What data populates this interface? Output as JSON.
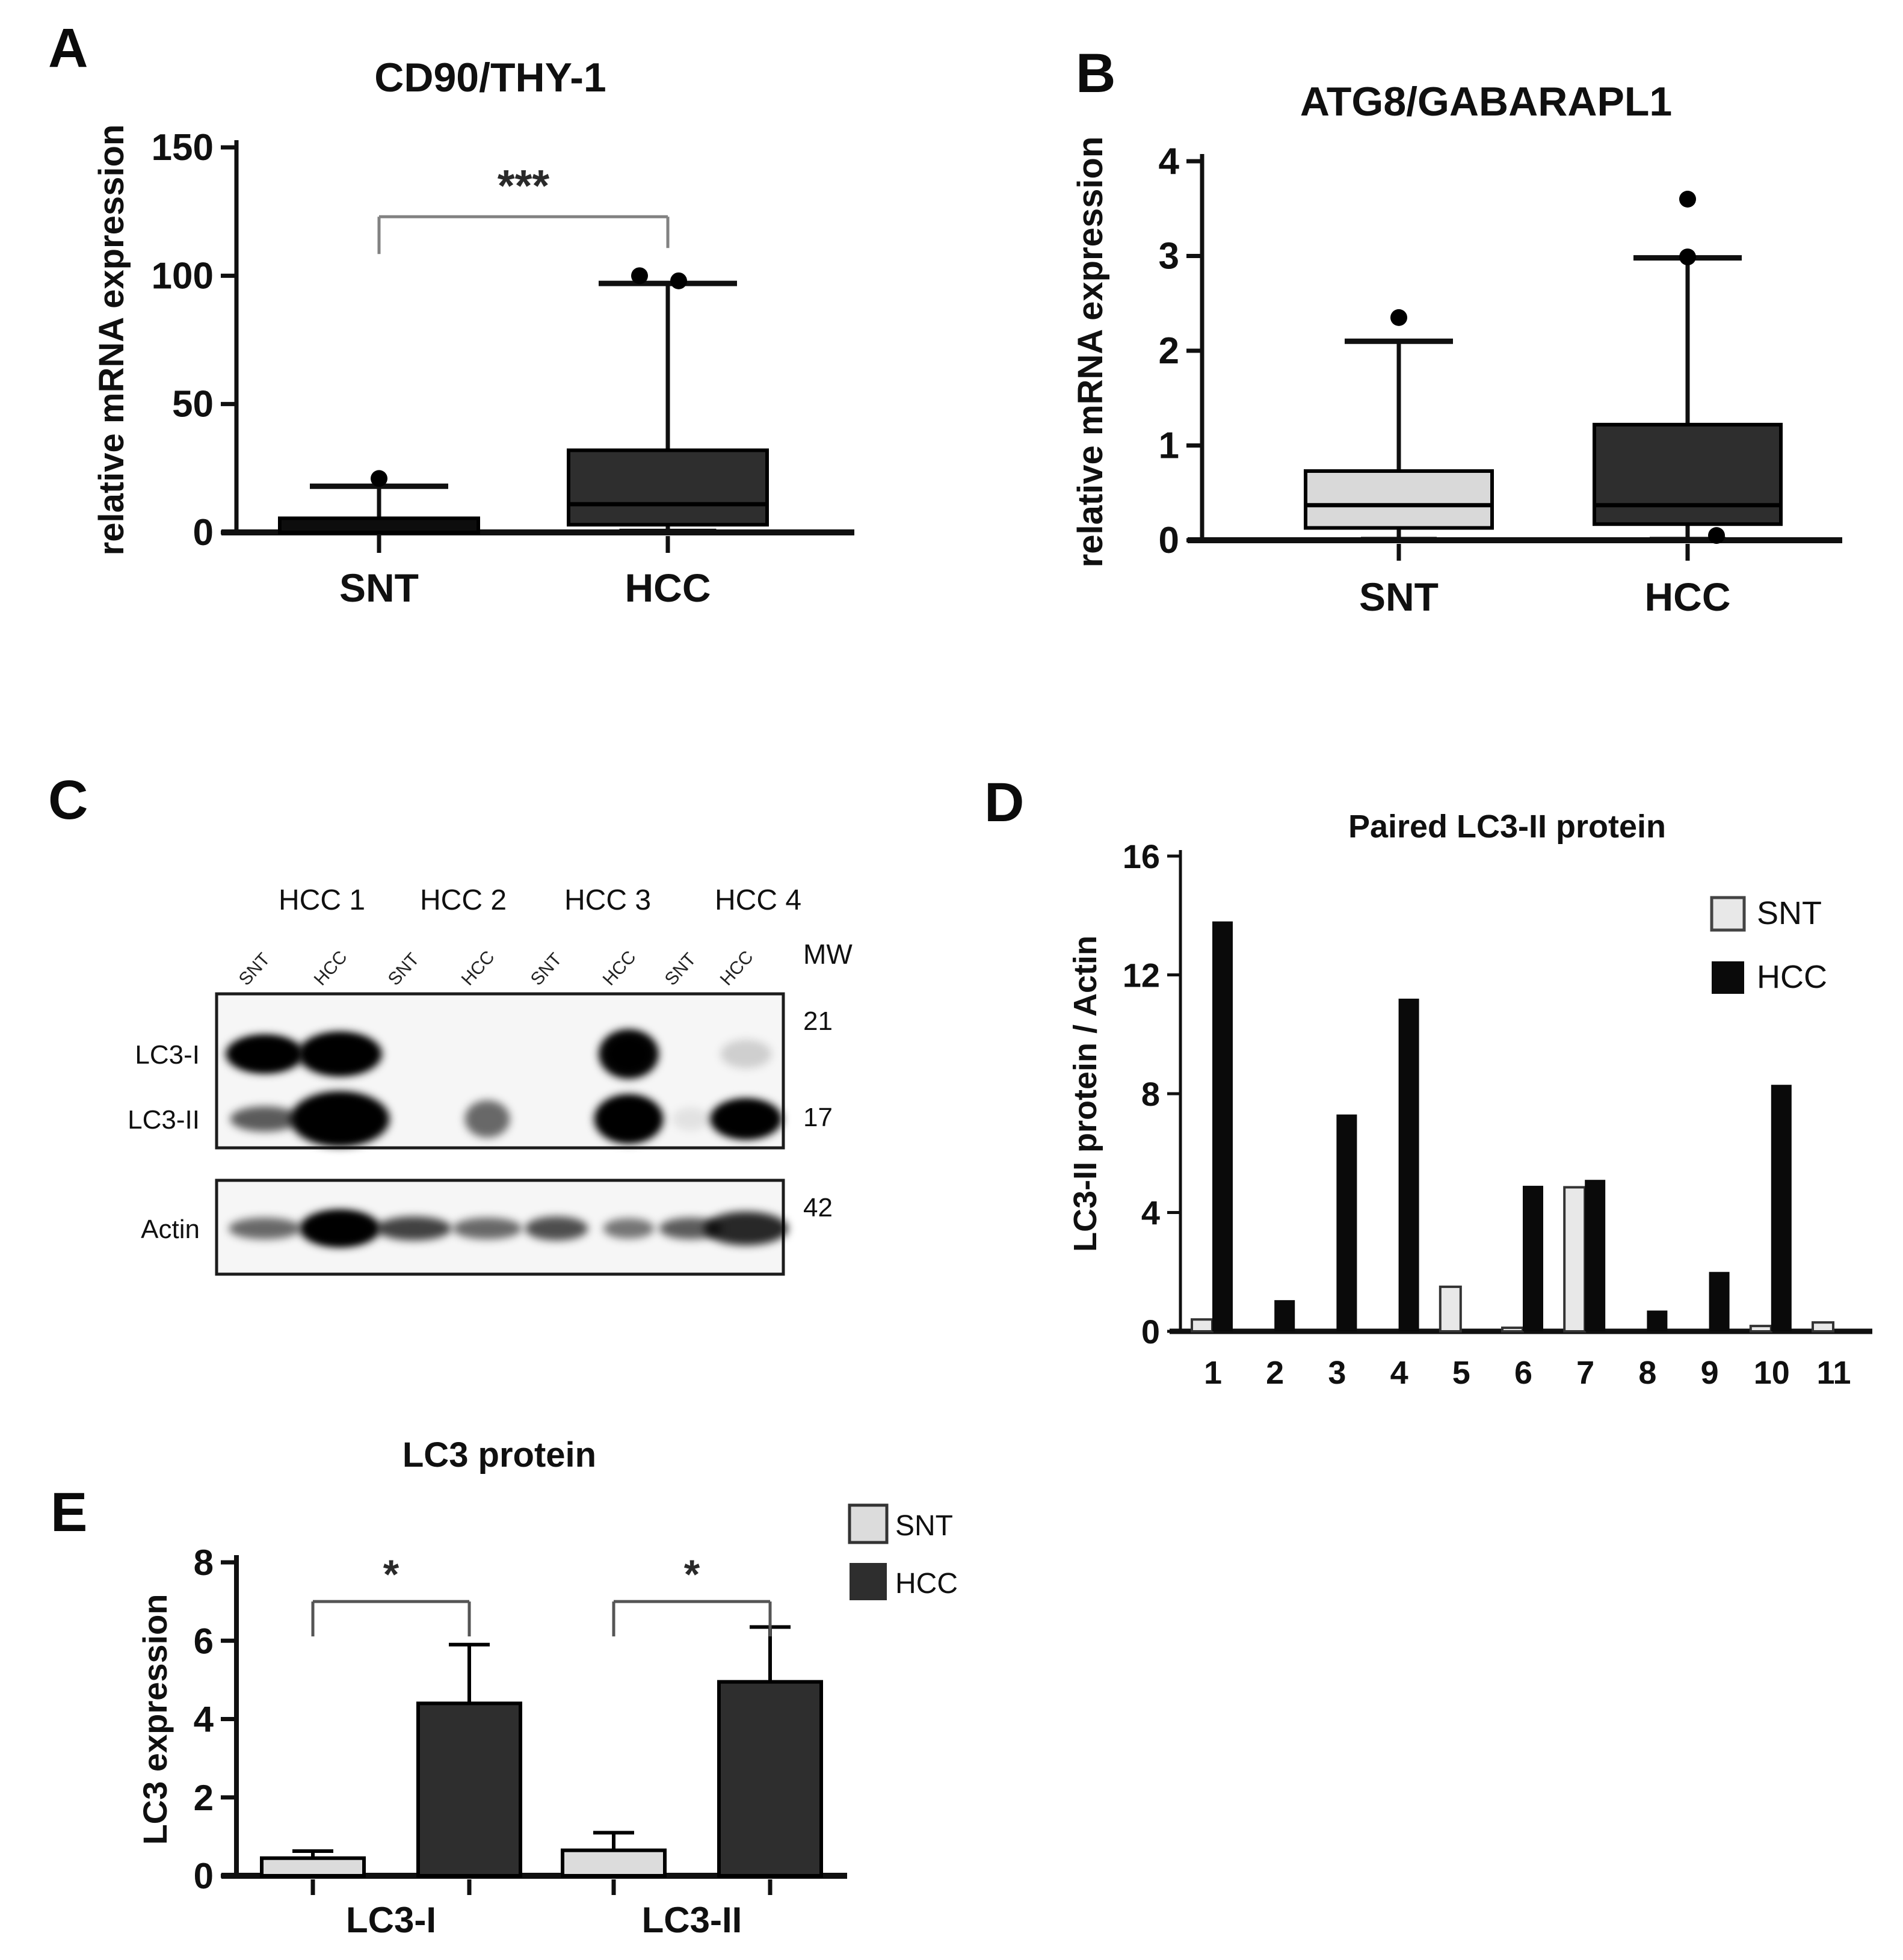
{
  "figure": {
    "panels": {
      "a": "A",
      "b": "B",
      "c": "C",
      "d": "D",
      "e": "E"
    }
  },
  "colors": {
    "dark_box": "#2e2e2e",
    "black": "#0a0a0a",
    "light_gray": "#d9d9d9",
    "lighter_gray": "#e8e8e8",
    "bracket_gray": "#828282",
    "text": "#101010"
  },
  "chart_data": [
    {
      "id": "cd90",
      "panel": "A",
      "type": "boxplot",
      "title": "CD90/THY-1",
      "ylabel": "relative mRNA expression",
      "ylim": [
        0,
        150
      ],
      "yticks": [
        0,
        50,
        100,
        150
      ],
      "categories": [
        "SNT",
        "HCC"
      ],
      "boxes": [
        {
          "category": "SNT",
          "fill": "#0d0d0d",
          "q1": 0,
          "median": 2,
          "q3": 5.5,
          "whisker_low": -6,
          "whisker_high": 18,
          "cap_low": false,
          "median_visible": false,
          "outliers": [
            {
              "v": 21,
              "dx": 0
            }
          ]
        },
        {
          "category": "HCC",
          "fill": "#2e2e2e",
          "q1": 3,
          "median": 11,
          "q3": 32,
          "whisker_low": 0.5,
          "whisker_high": 97,
          "cap_low": true,
          "median_visible": true,
          "outliers": [
            {
              "v": 100,
              "dx": -47
            },
            {
              "v": 98,
              "dx": 18
            }
          ]
        }
      ],
      "significance": {
        "label": "***",
        "from": "SNT",
        "to": "HCC",
        "height": 123
      }
    },
    {
      "id": "atg8",
      "panel": "B",
      "type": "boxplot",
      "title": "ATG8/GABARAPL1",
      "ylabel": "relative mRNA expression",
      "ylim": [
        0,
        4
      ],
      "yticks": [
        0,
        1,
        2,
        3,
        4
      ],
      "categories": [
        "SNT",
        "HCC"
      ],
      "boxes": [
        {
          "category": "SNT",
          "fill": "#d9d9d9",
          "q1": 0.13,
          "median": 0.37,
          "q3": 0.73,
          "whisker_low": 0.01,
          "whisker_high": 2.1,
          "cap_low": true,
          "median_visible": true,
          "outliers": [
            {
              "v": 2.35,
              "dx": 0
            }
          ]
        },
        {
          "category": "HCC",
          "fill": "#2e2e2e",
          "q1": 0.17,
          "median": 0.37,
          "q3": 1.22,
          "whisker_low": 0.01,
          "whisker_high": 2.98,
          "cap_low": true,
          "median_visible": true,
          "outliers": [
            {
              "v": 3.6,
              "dx": 0
            },
            {
              "v": 2.99,
              "dx": 0
            },
            {
              "v": 0.05,
              "dx": 48
            }
          ]
        }
      ],
      "significance": null
    },
    {
      "id": "paired-lc3ii",
      "panel": "D",
      "type": "bar",
      "title": "Paired LC3-II protein",
      "ylabel": "LC3-II protein / Actin",
      "ylim": [
        0,
        16
      ],
      "yticks": [
        0,
        4,
        8,
        12,
        16
      ],
      "categories": [
        "1",
        "2",
        "3",
        "4",
        "5",
        "6",
        "7",
        "8",
        "9",
        "10",
        "11"
      ],
      "series": [
        {
          "name": "SNT",
          "fill": "#e8e8e8",
          "values": [
            0.4,
            0,
            0,
            0,
            1.5,
            0.12,
            4.85,
            0,
            0,
            0.18,
            0.3
          ]
        },
        {
          "name": "HCC",
          "fill": "#0a0a0a",
          "values": [
            13.8,
            1.05,
            7.3,
            11.2,
            0,
            4.9,
            5.1,
            0.7,
            2.0,
            8.3,
            0
          ]
        }
      ],
      "legend": [
        "SNT",
        "HCC"
      ]
    },
    {
      "id": "lc3-protein",
      "panel": "E",
      "type": "bar",
      "title": "LC3 protein",
      "ylabel": "LC3 expression",
      "ylim": [
        0,
        8
      ],
      "yticks": [
        0,
        2,
        4,
        6,
        8
      ],
      "categories": [
        "LC3-I",
        "LC3-II"
      ],
      "series": [
        {
          "name": "SNT",
          "fill": "#dcdcdc",
          "values": [
            0.45,
            0.65
          ],
          "errors": [
            0.18,
            0.45
          ]
        },
        {
          "name": "HCC",
          "fill": "#2e2e2e",
          "values": [
            4.4,
            4.95
          ],
          "errors": [
            1.5,
            1.4
          ]
        }
      ],
      "significance": [
        {
          "label": "*",
          "category": "LC3-I",
          "height": 7.0
        },
        {
          "label": "*",
          "category": "LC3-II",
          "height": 7.0
        }
      ],
      "legend": [
        "SNT",
        "HCC"
      ]
    }
  ],
  "western_blot": {
    "panel": "C",
    "group_labels": [
      "HCC 1",
      "HCC 2",
      "HCC 3",
      "HCC 4"
    ],
    "lane_labels": [
      "SNT",
      "HCC",
      "SNT",
      "HCC",
      "SNT",
      "HCC",
      "SNT",
      "HCC"
    ],
    "mw_header": "MW",
    "rows": [
      {
        "label": "LC3-I",
        "mw": "21",
        "bands": [
          {
            "lane": 1,
            "i": 1,
            "w": 130,
            "h": 64
          },
          {
            "lane": 2,
            "i": 1,
            "w": 140,
            "h": 74
          },
          {
            "lane": 6,
            "i": 0.92,
            "w": 100,
            "h": 82
          },
          {
            "lane": 8,
            "i": 0.15,
            "w": 85,
            "h": 48
          }
        ]
      },
      {
        "label": "LC3-II",
        "mw": "17",
        "bands": [
          {
            "lane": 1,
            "i": 0.6,
            "w": 115,
            "h": 42
          },
          {
            "lane": 2,
            "i": 1,
            "w": 165,
            "h": 92
          },
          {
            "lane": 4,
            "i": 0.55,
            "w": 75,
            "h": 62
          },
          {
            "lane": 6,
            "i": 0.97,
            "w": 115,
            "h": 82
          },
          {
            "lane": 7,
            "i": 0.08,
            "w": 60,
            "h": 38
          },
          {
            "lane": 8,
            "i": 0.95,
            "w": 120,
            "h": 68
          }
        ]
      },
      {
        "label": "Actin",
        "mw": "42",
        "bands": [
          {
            "lane": 1,
            "i": 0.55,
            "w": 120,
            "h": 36
          },
          {
            "lane": 2,
            "i": 0.95,
            "w": 135,
            "h": 62
          },
          {
            "lane": 3,
            "i": 0.7,
            "w": 125,
            "h": 40
          },
          {
            "lane": 4,
            "i": 0.55,
            "w": 115,
            "h": 36
          },
          {
            "lane": 5,
            "i": 0.65,
            "w": 105,
            "h": 40
          },
          {
            "lane": 6,
            "i": 0.5,
            "w": 85,
            "h": 34
          },
          {
            "lane": 7,
            "i": 0.6,
            "w": 105,
            "h": 36
          },
          {
            "lane": 8,
            "i": 0.8,
            "w": 140,
            "h": 56
          }
        ]
      }
    ]
  }
}
